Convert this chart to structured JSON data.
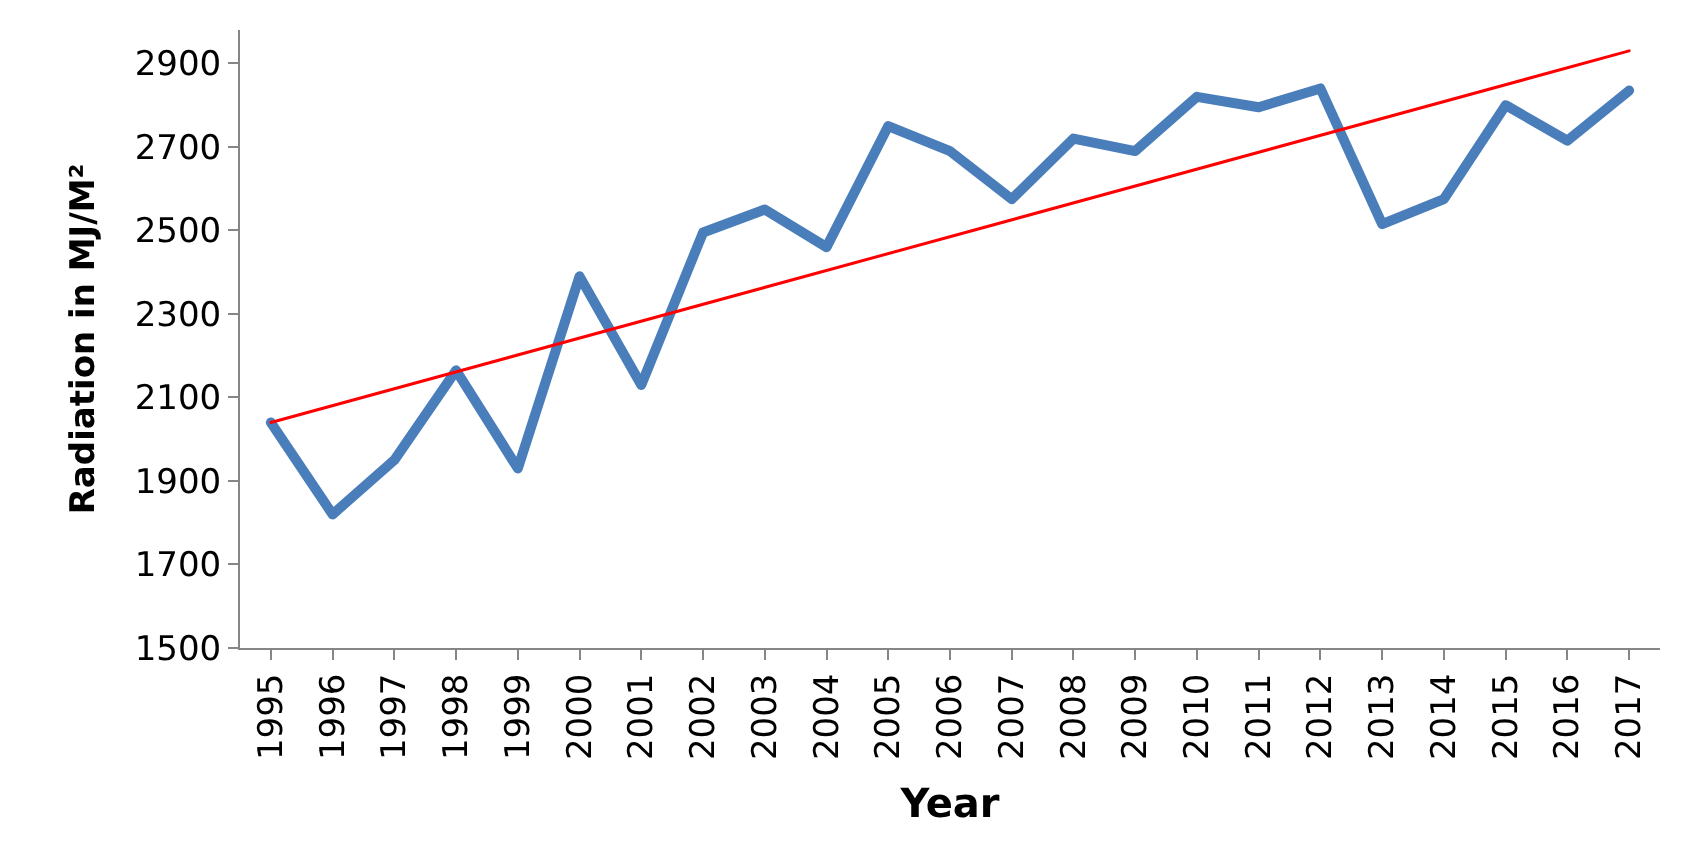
{
  "chart_data": {
    "type": "line",
    "xlabel": "Year",
    "ylabel": "Radiation in MJ/M²",
    "x": [
      1995,
      1996,
      1997,
      1998,
      1999,
      2000,
      2001,
      2002,
      2003,
      2004,
      2005,
      2006,
      2007,
      2008,
      2009,
      2010,
      2011,
      2012,
      2013,
      2014,
      2015,
      2016,
      2017
    ],
    "series": [
      {
        "color": "#4a7ebb",
        "values": [
          2040,
          1820,
          1950,
          2165,
          1930,
          2390,
          2130,
          2495,
          2550,
          2460,
          2750,
          2690,
          2575,
          2720,
          2690,
          2820,
          2795,
          2840,
          2515,
          2575,
          2800,
          2715,
          2835
        ]
      },
      {
        "type": "line",
        "color": "#ff0000",
        "x": [
          1995,
          2017
        ],
        "values": [
          2040,
          2930
        ]
      }
    ],
    "xlim": [
      1994.5,
      2017.5
    ],
    "xticks": [
      1995,
      1996,
      1997,
      1998,
      1999,
      2000,
      2001,
      2002,
      2003,
      2004,
      2005,
      2006,
      2007,
      2008,
      2009,
      2010,
      2011,
      2012,
      2013,
      2014,
      2015,
      2016,
      2017
    ],
    "ylim": [
      1500,
      2980
    ],
    "yticks": [
      1500,
      1700,
      1900,
      2100,
      2300,
      2500,
      2700,
      2900
    ],
    "marker": "none"
  }
}
